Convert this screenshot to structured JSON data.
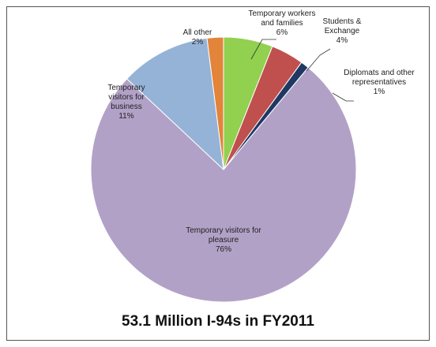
{
  "chart_data": {
    "type": "pie",
    "title": "53.1 Million I-94s in FY2011",
    "categories": [
      "Temporary workers and families",
      "Students & Exchange",
      "Diplomats and other representatives",
      "Temporary visitors for pleasure",
      "Temporary visitors for business",
      "All other"
    ],
    "values": [
      6,
      4,
      1,
      76,
      11,
      2
    ],
    "value_labels": [
      "6%",
      "4%",
      "1%",
      "76%",
      "11%",
      "2%"
    ],
    "colors": [
      "#92d050",
      "#c0504d",
      "#1f3864",
      "#b2a1c7",
      "#95b3d7",
      "#e2843a"
    ]
  }
}
